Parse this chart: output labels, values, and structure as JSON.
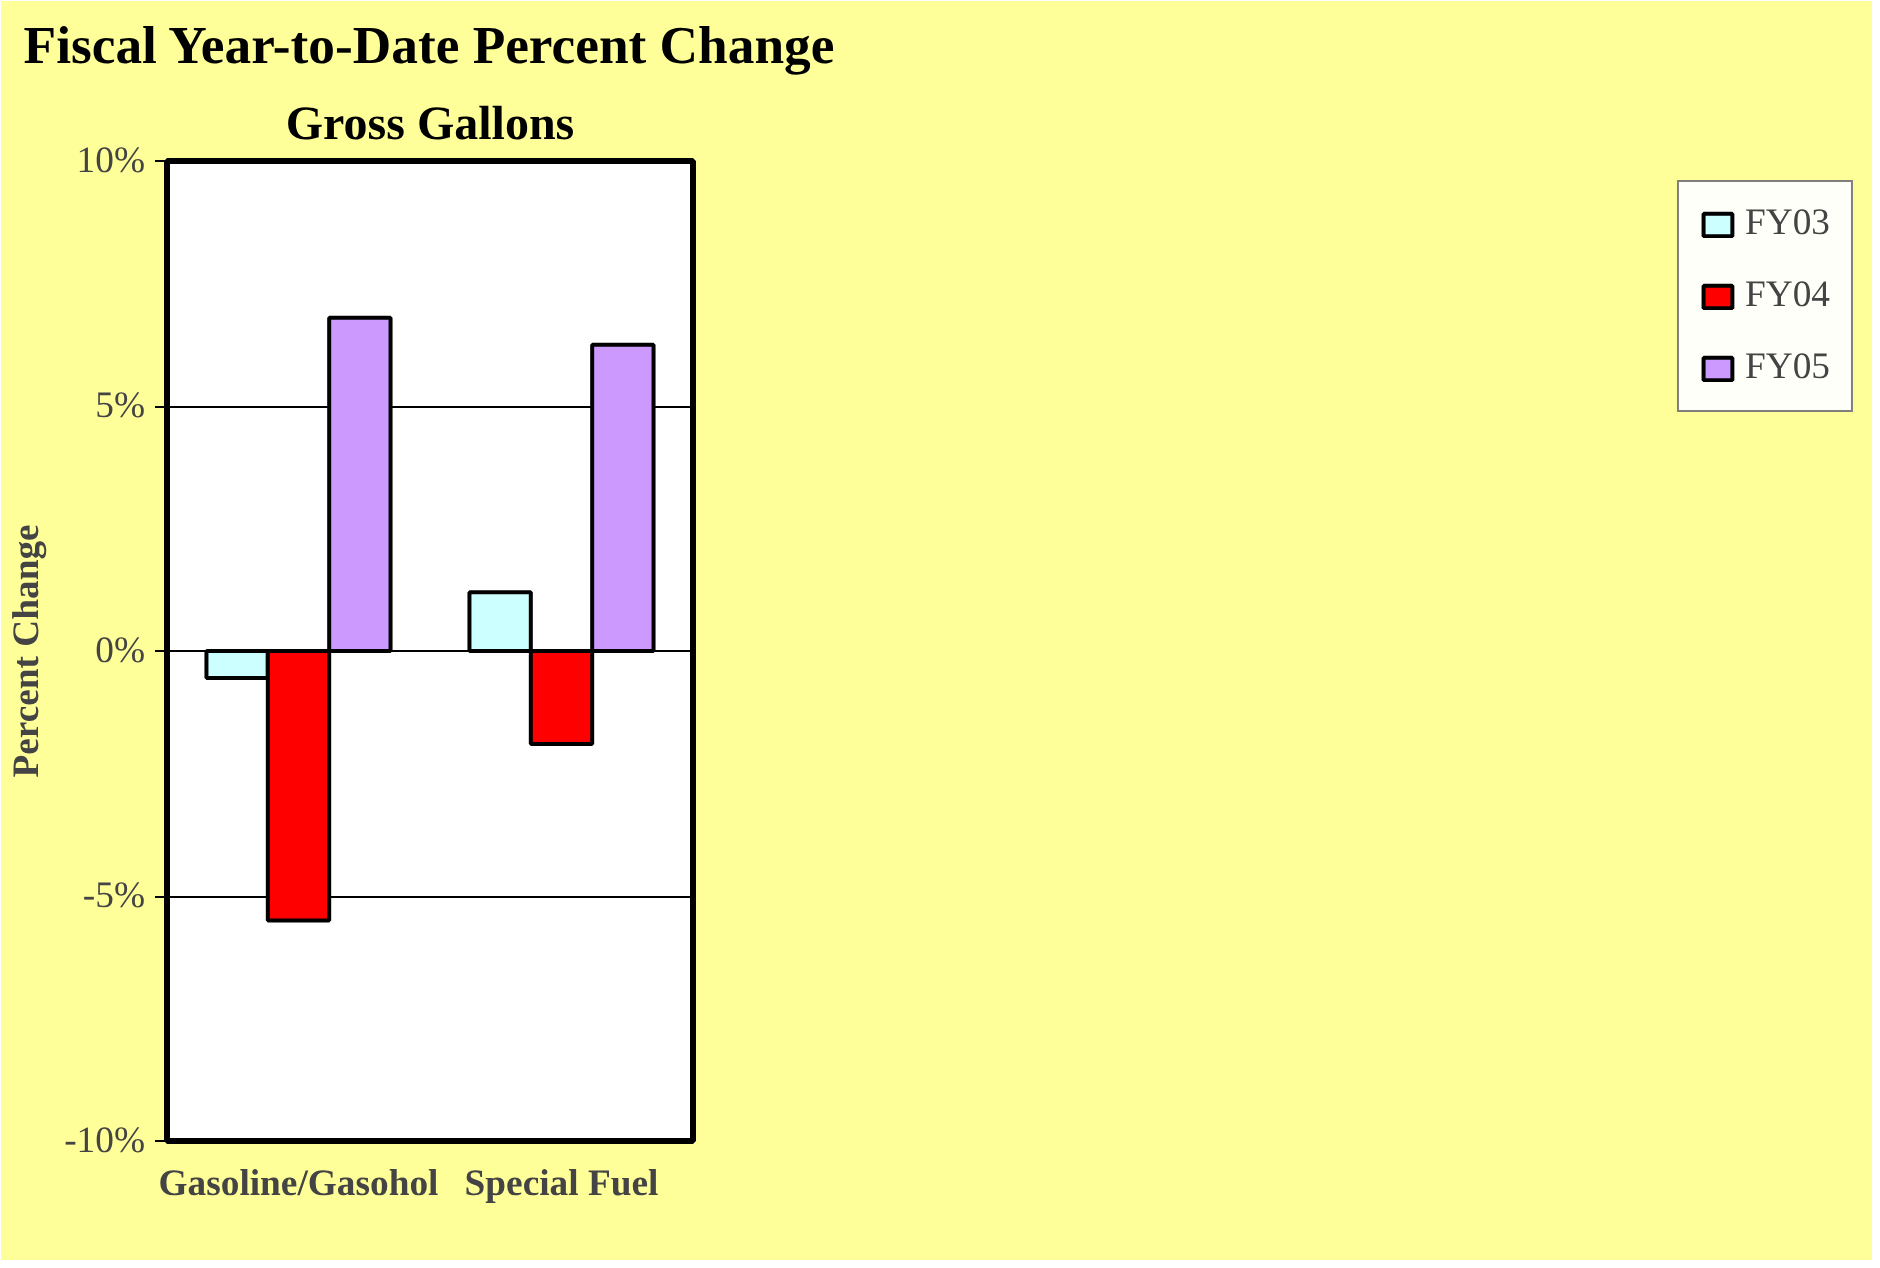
{
  "chart_data": {
    "type": "bar",
    "title": "Fiscal Year-to-Date Percent Change",
    "subtitle": "Gross Gallons",
    "ylabel": "Percent Change",
    "categories": [
      "Gasoline/Gasohol",
      "Special Fuel"
    ],
    "series": [
      {
        "name": "FY03",
        "color": "#ccffff",
        "values": [
          -0.55,
          1.2
        ]
      },
      {
        "name": "FY04",
        "color": "#ff0000",
        "values": [
          -5.5,
          -1.9
        ]
      },
      {
        "name": "FY05",
        "color": "#cc99ff",
        "values": [
          6.8,
          6.25
        ]
      }
    ],
    "ylim": [
      -10,
      10
    ],
    "yticks": [
      {
        "value": -10,
        "label": "-10%"
      },
      {
        "value": -5,
        "label": "-5%"
      },
      {
        "value": 0,
        "label": "0%"
      },
      {
        "value": 5,
        "label": "5%"
      },
      {
        "value": 10,
        "label": "10%"
      }
    ],
    "grid": "y",
    "legend": "right"
  }
}
